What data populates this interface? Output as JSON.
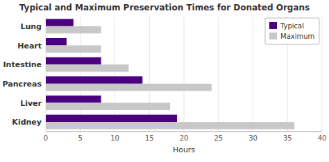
{
  "chart_data": {
    "type": "bar",
    "orientation": "horizontal",
    "title": "Typical and Maximum Preservation Times for Donated Organs",
    "categories": [
      "Kidney",
      "Liver",
      "Pancreas",
      "Intestine",
      "Heart",
      "Lung"
    ],
    "series": [
      {
        "name": "Typical",
        "color": "#4B0082",
        "values": [
          19,
          8,
          14,
          8,
          3,
          4
        ]
      },
      {
        "name": "Maximum",
        "color": "#C8C8C8",
        "values": [
          36,
          18,
          24,
          12,
          8,
          8
        ]
      }
    ],
    "xlabel": "Hours",
    "xlim": [
      0,
      40
    ],
    "xticks": [
      0,
      5,
      10,
      15,
      20,
      25,
      30,
      35,
      40
    ],
    "grid": true,
    "legend": "upper right"
  }
}
